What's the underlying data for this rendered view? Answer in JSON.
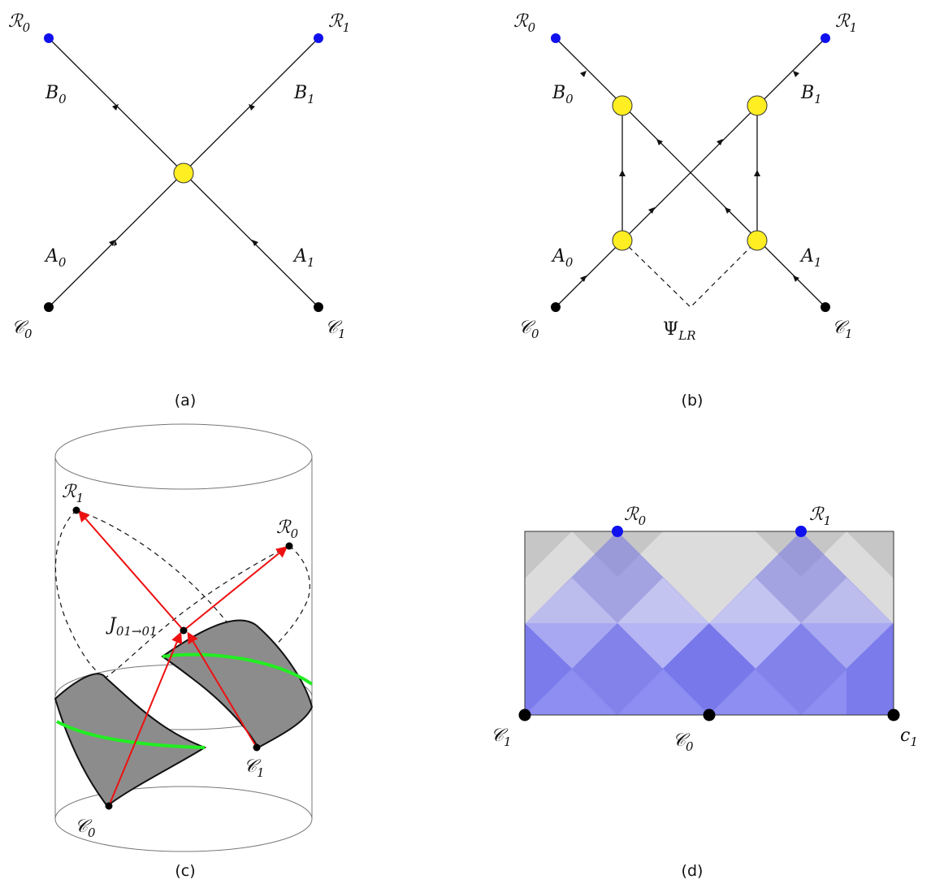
{
  "panels": {
    "a": {
      "caption": "(a)",
      "labels": {
        "R0": {
          "base": "R",
          "sub": "0"
        },
        "R1": {
          "base": "R",
          "sub": "1"
        },
        "B0": {
          "base": "B",
          "sub": "0"
        },
        "B1": {
          "base": "B",
          "sub": "1"
        },
        "A0": {
          "base": "A",
          "sub": "0"
        },
        "A1": {
          "base": "A",
          "sub": "1"
        },
        "C0": {
          "base": "C",
          "sub": "0"
        },
        "C1": {
          "base": "C",
          "sub": "1"
        }
      }
    },
    "b": {
      "caption": "(b)",
      "labels": {
        "R0": {
          "base": "R",
          "sub": "0"
        },
        "R1": {
          "base": "R",
          "sub": "1"
        },
        "B0": {
          "base": "B",
          "sub": "0"
        },
        "B1": {
          "base": "B",
          "sub": "1"
        },
        "A0": {
          "base": "A",
          "sub": "0"
        },
        "A1": {
          "base": "A",
          "sub": "1"
        },
        "C0": {
          "base": "C",
          "sub": "0"
        },
        "C1": {
          "base": "C",
          "sub": "1"
        },
        "Psi": {
          "base": "Ψ",
          "sub": "LR"
        }
      }
    },
    "c": {
      "caption": "(c)",
      "labels": {
        "R1": {
          "base": "R",
          "sub": "1"
        },
        "R0": {
          "base": "R",
          "sub": "0"
        },
        "J": {
          "base": "J",
          "sub": "01→01"
        },
        "C1": {
          "base": "C",
          "sub": "1"
        },
        "C0": {
          "base": "C",
          "sub": "0"
        }
      }
    },
    "d": {
      "caption": "(d)",
      "labels": {
        "R0": {
          "base": "R",
          "sub": "0"
        },
        "R1": {
          "base": "R",
          "sub": "1"
        },
        "C1": {
          "base": "C",
          "sub": "1"
        },
        "C0": {
          "base": "C",
          "sub": "0"
        },
        "c1": {
          "base": "c",
          "sub": "1"
        }
      }
    }
  },
  "colors": {
    "vertex_yellow": "#ffee22",
    "boundary_blue": "#1010ee",
    "point_black": "#000000",
    "arrow_red": "#ee1111",
    "geodesic_green": "#22ee22",
    "surface_gray": "#8c8c8c"
  }
}
